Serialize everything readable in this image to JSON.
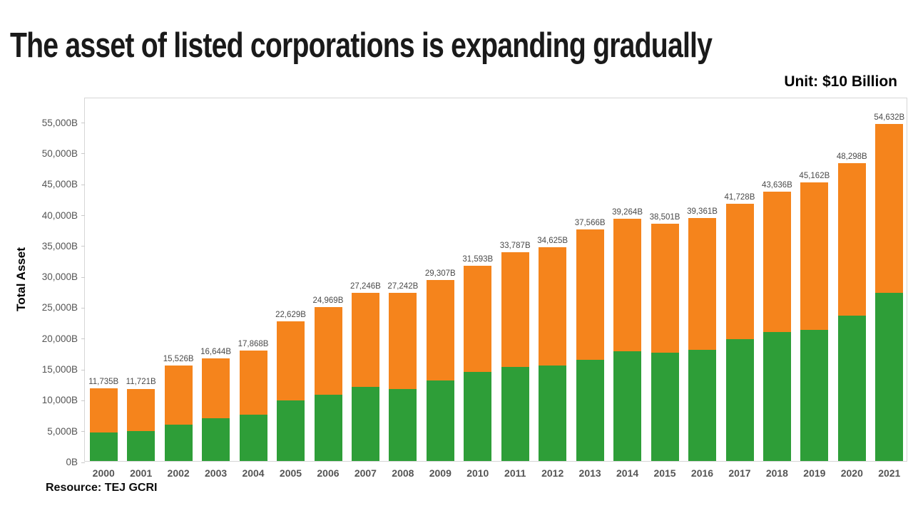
{
  "title": "The asset of listed corporations is expanding gradually",
  "unit_label": "Unit: $10 Billion",
  "source_label": "Resource: TEJ GCRI",
  "chart_data": {
    "type": "bar",
    "stacked": true,
    "title": "The asset of listed corporations is expanding gradually",
    "ylabel": "Total Asset",
    "xlabel": "",
    "unit": "$10 Billion",
    "legend": "none",
    "grid": false,
    "ylim": [
      0,
      59000
    ],
    "ytick_values": [
      0,
      5000,
      10000,
      15000,
      20000,
      25000,
      30000,
      35000,
      40000,
      45000,
      50000,
      55000
    ],
    "ytick_labels": [
      "0B",
      "5,000B",
      "10,000B",
      "15,000B",
      "20,000B",
      "25,000B",
      "30,000B",
      "35,000B",
      "40,000B",
      "45,000B",
      "50,000B",
      "55,000B"
    ],
    "categories": [
      "2000",
      "2001",
      "2002",
      "2003",
      "2004",
      "2005",
      "2006",
      "2007",
      "2008",
      "2009",
      "2010",
      "2011",
      "2012",
      "2013",
      "2014",
      "2015",
      "2016",
      "2017",
      "2018",
      "2019",
      "2020",
      "2021"
    ],
    "series": [
      {
        "name": "lower-segment-green",
        "color": "#2e9e38",
        "values": [
          4600,
          4800,
          5900,
          6900,
          7500,
          9800,
          10800,
          12000,
          11700,
          13100,
          14400,
          15200,
          15500,
          16400,
          17800,
          17500,
          18000,
          19700,
          20900,
          21200,
          23600,
          27300
        ]
      },
      {
        "name": "upper-segment-orange",
        "color": "#f5841c",
        "values": [
          7135,
          6921,
          9626,
          9744,
          10368,
          12829,
          14169,
          15246,
          15542,
          16207,
          17193,
          18587,
          19125,
          21166,
          21464,
          21001,
          21361,
          22028,
          22736,
          23962,
          24698,
          27332
        ]
      }
    ],
    "totals": [
      11735,
      11721,
      15526,
      16644,
      17868,
      22629,
      24969,
      27246,
      27242,
      29307,
      31593,
      33787,
      34625,
      37566,
      39264,
      38501,
      39361,
      41728,
      43636,
      45162,
      48298,
      54632
    ],
    "total_labels": [
      "11,735B",
      "11,721B",
      "15,526B",
      "16,644B",
      "17,868B",
      "22,629B",
      "24,969B",
      "27,246B",
      "27,242B",
      "29,307B",
      "31,593B",
      "33,787B",
      "34,625B",
      "37,566B",
      "39,264B",
      "38,501B",
      "39,361B",
      "41,728B",
      "43,636B",
      "45,162B",
      "48,298B",
      "54,632B"
    ]
  }
}
